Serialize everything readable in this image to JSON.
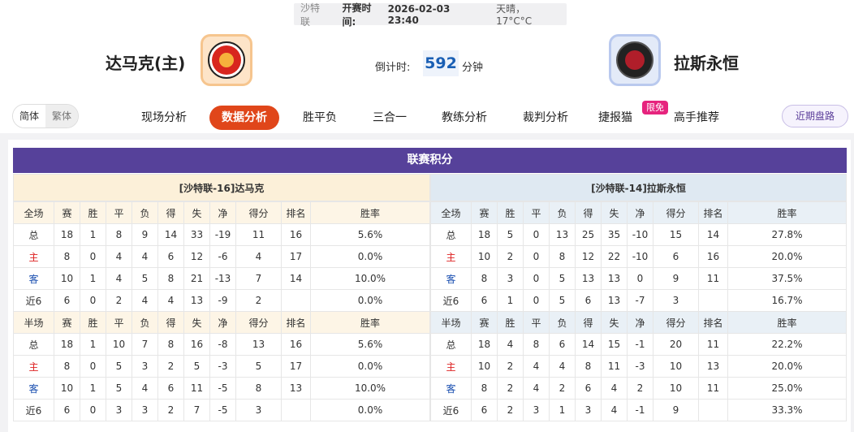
{
  "header": {
    "league": "沙特联",
    "kickoff_label": "开赛时间:",
    "kickoff": "2026-02-03 23:40",
    "weather": "天晴，17°C°C"
  },
  "home": {
    "name": "达马克(主)"
  },
  "away": {
    "name": "拉斯永恒"
  },
  "countdown": {
    "label": "倒计时:",
    "value": 592,
    "unit": "分钟"
  },
  "nav": {
    "lang": [
      "简体",
      "繁体"
    ],
    "tabs": [
      "现场分析",
      "数据分析",
      "胜平负",
      "三合一",
      "教练分析",
      "裁判分析",
      "捷报猫",
      "高手推荐"
    ],
    "badge": "限免",
    "right": "近期盘路"
  },
  "standings": {
    "title": "联赛积分",
    "home_title": "[沙特联-16]达马克",
    "away_title": "[沙特联-14]拉斯永恒",
    "sections": [
      {
        "home": {
          "header": [
            "全场",
            "赛",
            "胜",
            "平",
            "负",
            "得",
            "失",
            "净",
            "得分",
            "排名",
            "胜率"
          ],
          "rows": [
            [
              "总",
              18,
              1,
              8,
              9,
              14,
              33,
              -19,
              11,
              16,
              "5.6%"
            ],
            [
              "主",
              8,
              0,
              4,
              4,
              6,
              12,
              -6,
              4,
              17,
              "0.0%"
            ],
            [
              "客",
              10,
              1,
              4,
              5,
              8,
              21,
              -13,
              7,
              14,
              "10.0%"
            ],
            [
              "近6",
              6,
              0,
              2,
              4,
              4,
              13,
              -9,
              2,
              null,
              "0.0%"
            ]
          ]
        },
        "away": {
          "header": [
            "全场",
            "赛",
            "胜",
            "平",
            "负",
            "得",
            "失",
            "净",
            "得分",
            "排名",
            "胜率"
          ],
          "rows": [
            [
              "总",
              18,
              5,
              0,
              13,
              25,
              35,
              -10,
              15,
              14,
              "27.8%"
            ],
            [
              "主",
              10,
              2,
              0,
              8,
              12,
              22,
              -10,
              6,
              16,
              "20.0%"
            ],
            [
              "客",
              8,
              3,
              0,
              5,
              13,
              13,
              0,
              9,
              11,
              "37.5%"
            ],
            [
              "近6",
              6,
              1,
              0,
              5,
              6,
              13,
              -7,
              3,
              null,
              "16.7%"
            ]
          ]
        }
      },
      {
        "home": {
          "header": [
            "半场",
            "赛",
            "胜",
            "平",
            "负",
            "得",
            "失",
            "净",
            "得分",
            "排名",
            "胜率"
          ],
          "rows": [
            [
              "总",
              18,
              1,
              10,
              7,
              8,
              16,
              -8,
              13,
              16,
              "5.6%"
            ],
            [
              "主",
              8,
              0,
              5,
              3,
              2,
              5,
              -3,
              5,
              17,
              "0.0%"
            ],
            [
              "客",
              10,
              1,
              5,
              4,
              6,
              11,
              -5,
              8,
              13,
              "10.0%"
            ],
            [
              "近6",
              6,
              0,
              3,
              3,
              2,
              7,
              -5,
              3,
              null,
              "0.0%"
            ]
          ]
        },
        "away": {
          "header": [
            "半场",
            "赛",
            "胜",
            "平",
            "负",
            "得",
            "失",
            "净",
            "得分",
            "排名",
            "胜率"
          ],
          "rows": [
            [
              "总",
              18,
              4,
              8,
              6,
              14,
              15,
              -1,
              20,
              11,
              "22.2%"
            ],
            [
              "主",
              10,
              2,
              4,
              4,
              8,
              11,
              -3,
              10,
              13,
              "20.0%"
            ],
            [
              "客",
              8,
              2,
              4,
              2,
              6,
              4,
              2,
              10,
              11,
              "25.0%"
            ],
            [
              "近6",
              6,
              2,
              3,
              1,
              3,
              4,
              -1,
              9,
              null,
              "33.3%"
            ]
          ]
        }
      }
    ]
  }
}
